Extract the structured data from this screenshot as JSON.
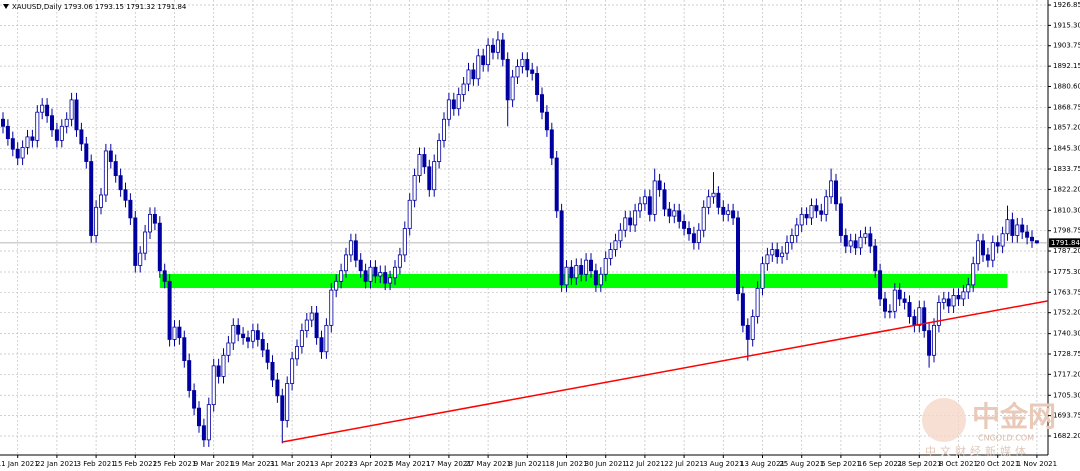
{
  "chart_data": {
    "type": "candlestick",
    "title": "XAUUSD,Daily",
    "color": "#0000a0",
    "grid": true,
    "categories": [
      null,
      null,
      null,
      "11 Jan 2021",
      null,
      null,
      null,
      null,
      null,
      null,
      null,
      "22 Jan 2021",
      null,
      null,
      null,
      null,
      null,
      null,
      null,
      "3 Feb 2021",
      null,
      null,
      null,
      null,
      null,
      null,
      null,
      "15 Feb 2021",
      null,
      null,
      null,
      null,
      null,
      null,
      null,
      "25 Feb 2021",
      null,
      null,
      null,
      null,
      null,
      null,
      null,
      "9 Mar 2021",
      null,
      null,
      null,
      null,
      null,
      null,
      null,
      "19 Mar 2021",
      null,
      null,
      null,
      null,
      null,
      null,
      null,
      "31 Mar 2021",
      null,
      null,
      null,
      null,
      null,
      null,
      null,
      "13 Apr 2021",
      null,
      null,
      null,
      null,
      null,
      null,
      null,
      "23 Apr 2021",
      null,
      null,
      null,
      null,
      null,
      null,
      null,
      "5 May 2021",
      null,
      null,
      null,
      null,
      null,
      null,
      null,
      "17 May 2021",
      null,
      null,
      null,
      null,
      null,
      null,
      null,
      "27 May 2021",
      null,
      null,
      null,
      null,
      null,
      null,
      null,
      "8 Jun 2021",
      null,
      null,
      null,
      null,
      null,
      null,
      null,
      "18 Jun 2021",
      null,
      null,
      null,
      null,
      null,
      null,
      null,
      "30 Jun 2021",
      null,
      null,
      null,
      null,
      null,
      null,
      null,
      "12 Jul 2021",
      null,
      null,
      null,
      null,
      null,
      null,
      null,
      "22 Jul 2021",
      null,
      null,
      null,
      null,
      null,
      null,
      null,
      "3 Aug 2021",
      null,
      null,
      null,
      null,
      null,
      null,
      null,
      "13 Aug 2021",
      null,
      null,
      null,
      null,
      null,
      null,
      null,
      "25 Aug 2021",
      null,
      null,
      null,
      null,
      null,
      null,
      null,
      "6 Sep 2021",
      null,
      null,
      null,
      null,
      null,
      null,
      null,
      "16 Sep 2021",
      null,
      null,
      null,
      null,
      null,
      null,
      null,
      "28 Sep 2021",
      null,
      null,
      null,
      null,
      null,
      null,
      null,
      "8 Oct 2021",
      null,
      null,
      null,
      null,
      null,
      null,
      null,
      "20 Oct 2021",
      null,
      null,
      null,
      null,
      null,
      null,
      null,
      "1 Nov 2021"
    ],
    "open": [
      1862,
      1858,
      1851,
      1845,
      1840,
      1846,
      1852,
      1850,
      1866,
      1870,
      1864,
      1856,
      1850,
      1858,
      1862,
      1873,
      1856,
      1848,
      1838,
      1796,
      1812,
      1819,
      1844,
      1838,
      1830,
      1822,
      1816,
      1806,
      1779,
      1786,
      1798,
      1808,
      1803,
      1776,
      1770,
      1737,
      1744,
      1738,
      1725,
      1708,
      1698,
      1688,
      1680,
      1700,
      1722,
      1716,
      1728,
      1735,
      1745,
      1740,
      1738,
      1736,
      1742,
      1737,
      1731,
      1724,
      1714,
      1705,
      1691,
      1712,
      1726,
      1733,
      1742,
      1748,
      1752,
      1738,
      1730,
      1745,
      1765,
      1770,
      1776,
      1785,
      1793,
      1782,
      1776,
      1770,
      1778,
      1773,
      1775,
      1769,
      1772,
      1778,
      1785,
      1800,
      1816,
      1830,
      1842,
      1835,
      1822,
      1838,
      1850,
      1862,
      1873,
      1868,
      1876,
      1882,
      1890,
      1885,
      1898,
      1893,
      1904,
      1900,
      1907,
      1896,
      1873,
      1886,
      1892,
      1896,
      1890,
      1888,
      1876,
      1866,
      1856,
      1840,
      1810,
      1768,
      1778,
      1772,
      1779,
      1774,
      1782,
      1776,
      1768,
      1774,
      1783,
      1788,
      1793,
      1799,
      1806,
      1802,
      1810,
      1814,
      1818,
      1808,
      1827,
      1822,
      1811,
      1807,
      1810,
      1804,
      1800,
      1797,
      1792,
      1799,
      1812,
      1818,
      1820,
      1812,
      1808,
      1810,
      1806,
      1763,
      1745,
      1737,
      1750,
      1766,
      1780,
      1785,
      1788,
      1784,
      1786,
      1792,
      1796,
      1802,
      1808,
      1806,
      1813,
      1810,
      1808,
      1818,
      1827,
      1814,
      1796,
      1790,
      1793,
      1789,
      1795,
      1797,
      1790,
      1776,
      1760,
      1753,
      1753,
      1765,
      1760,
      1758,
      1750,
      1745,
      1755,
      1742,
      1728,
      1745,
      1758,
      1760,
      1756,
      1762,
      1760,
      1764,
      1768,
      1780,
      1793,
      1785,
      1782,
      1792,
      1790,
      1797,
      1805,
      1796,
      1802,
      1798,
      1795,
      1793.06
    ],
    "high": [
      1866,
      1862,
      1855,
      1849,
      1850,
      1856,
      1856,
      1870,
      1874,
      1874,
      1868,
      1860,
      1862,
      1866,
      1877,
      1877,
      1860,
      1852,
      1842,
      1816,
      1823,
      1848,
      1848,
      1842,
      1834,
      1826,
      1820,
      1810,
      1790,
      1802,
      1812,
      1812,
      1807,
      1780,
      1774,
      1748,
      1748,
      1742,
      1729,
      1712,
      1702,
      1692,
      1704,
      1726,
      1726,
      1732,
      1739,
      1749,
      1749,
      1744,
      1742,
      1746,
      1746,
      1741,
      1735,
      1728,
      1718,
      1709,
      1716,
      1730,
      1737,
      1746,
      1752,
      1756,
      1756,
      1742,
      1749,
      1769,
      1774,
      1780,
      1789,
      1797,
      1797,
      1786,
      1780,
      1782,
      1782,
      1779,
      1779,
      1776,
      1782,
      1789,
      1804,
      1820,
      1834,
      1846,
      1846,
      1839,
      1842,
      1854,
      1866,
      1877,
      1877,
      1880,
      1886,
      1894,
      1894,
      1902,
      1902,
      1908,
      1908,
      1912,
      1911,
      1900,
      1890,
      1896,
      1900,
      1900,
      1894,
      1892,
      1880,
      1870,
      1860,
      1844,
      1814,
      1782,
      1782,
      1783,
      1783,
      1786,
      1786,
      1780,
      1778,
      1787,
      1792,
      1797,
      1803,
      1810,
      1810,
      1814,
      1818,
      1822,
      1822,
      1834,
      1831,
      1826,
      1815,
      1814,
      1814,
      1808,
      1804,
      1801,
      1803,
      1816,
      1822,
      1832,
      1824,
      1816,
      1814,
      1814,
      1810,
      1767,
      1749,
      1754,
      1770,
      1784,
      1789,
      1792,
      1792,
      1790,
      1796,
      1800,
      1806,
      1812,
      1812,
      1817,
      1817,
      1814,
      1822,
      1834,
      1831,
      1818,
      1800,
      1797,
      1797,
      1799,
      1801,
      1801,
      1794,
      1780,
      1764,
      1757,
      1769,
      1769,
      1764,
      1762,
      1754,
      1759,
      1759,
      1746,
      1749,
      1762,
      1764,
      1764,
      1766,
      1766,
      1768,
      1772,
      1784,
      1797,
      1797,
      1789,
      1796,
      1796,
      1801,
      1813,
      1809,
      1806,
      1806,
      1802,
      1799,
      1793.15
    ],
    "low": [
      1854,
      1847,
      1841,
      1836,
      1836,
      1842,
      1846,
      1846,
      1862,
      1860,
      1852,
      1846,
      1846,
      1854,
      1858,
      1852,
      1844,
      1834,
      1792,
      1792,
      1808,
      1815,
      1834,
      1826,
      1818,
      1812,
      1802,
      1775,
      1775,
      1782,
      1794,
      1799,
      1772,
      1766,
      1733,
      1733,
      1734,
      1721,
      1704,
      1694,
      1684,
      1676,
      1676,
      1696,
      1712,
      1712,
      1724,
      1731,
      1736,
      1734,
      1732,
      1732,
      1733,
      1727,
      1720,
      1710,
      1701,
      1678,
      1687,
      1708,
      1722,
      1729,
      1738,
      1744,
      1734,
      1726,
      1726,
      1741,
      1761,
      1766,
      1772,
      1781,
      1778,
      1772,
      1766,
      1766,
      1769,
      1769,
      1765,
      1765,
      1768,
      1774,
      1781,
      1796,
      1812,
      1826,
      1831,
      1818,
      1818,
      1834,
      1846,
      1858,
      1864,
      1864,
      1872,
      1878,
      1881,
      1881,
      1889,
      1889,
      1896,
      1896,
      1892,
      1858,
      1869,
      1882,
      1888,
      1886,
      1884,
      1872,
      1862,
      1852,
      1836,
      1806,
      1764,
      1764,
      1768,
      1768,
      1770,
      1770,
      1772,
      1764,
      1764,
      1770,
      1779,
      1784,
      1789,
      1795,
      1798,
      1798,
      1806,
      1810,
      1804,
      1804,
      1818,
      1807,
      1803,
      1803,
      1800,
      1796,
      1793,
      1788,
      1788,
      1795,
      1808,
      1814,
      1808,
      1804,
      1804,
      1802,
      1759,
      1741,
      1725,
      1733,
      1746,
      1762,
      1776,
      1781,
      1780,
      1780,
      1782,
      1788,
      1792,
      1798,
      1802,
      1802,
      1806,
      1804,
      1804,
      1814,
      1810,
      1792,
      1786,
      1786,
      1785,
      1785,
      1791,
      1786,
      1772,
      1756,
      1749,
      1749,
      1749,
      1756,
      1754,
      1746,
      1741,
      1741,
      1738,
      1721,
      1724,
      1741,
      1754,
      1752,
      1752,
      1756,
      1756,
      1760,
      1764,
      1776,
      1781,
      1778,
      1778,
      1786,
      1786,
      1793,
      1792,
      1792,
      1794,
      1791,
      1789,
      1791.32
    ],
    "close": [
      1858,
      1851,
      1845,
      1840,
      1846,
      1852,
      1850,
      1866,
      1870,
      1864,
      1856,
      1850,
      1858,
      1862,
      1873,
      1856,
      1848,
      1838,
      1796,
      1812,
      1819,
      1844,
      1838,
      1830,
      1822,
      1816,
      1806,
      1779,
      1786,
      1798,
      1808,
      1803,
      1776,
      1770,
      1737,
      1744,
      1738,
      1725,
      1708,
      1698,
      1688,
      1680,
      1700,
      1722,
      1716,
      1728,
      1735,
      1745,
      1740,
      1738,
      1736,
      1742,
      1737,
      1731,
      1724,
      1714,
      1705,
      1691,
      1712,
      1726,
      1733,
      1742,
      1748,
      1752,
      1738,
      1730,
      1745,
      1765,
      1770,
      1776,
      1785,
      1793,
      1782,
      1776,
      1770,
      1778,
      1773,
      1775,
      1769,
      1772,
      1778,
      1785,
      1800,
      1816,
      1830,
      1842,
      1835,
      1822,
      1838,
      1850,
      1862,
      1873,
      1868,
      1876,
      1882,
      1890,
      1885,
      1898,
      1893,
      1904,
      1900,
      1907,
      1896,
      1873,
      1886,
      1892,
      1896,
      1890,
      1888,
      1876,
      1866,
      1856,
      1840,
      1810,
      1768,
      1778,
      1772,
      1779,
      1774,
      1782,
      1776,
      1768,
      1774,
      1783,
      1788,
      1793,
      1799,
      1806,
      1802,
      1810,
      1814,
      1818,
      1808,
      1827,
      1822,
      1811,
      1807,
      1810,
      1804,
      1800,
      1797,
      1792,
      1799,
      1812,
      1818,
      1820,
      1812,
      1808,
      1810,
      1806,
      1763,
      1745,
      1737,
      1750,
      1766,
      1780,
      1785,
      1788,
      1784,
      1786,
      1792,
      1796,
      1802,
      1808,
      1806,
      1813,
      1810,
      1808,
      1818,
      1827,
      1814,
      1796,
      1790,
      1793,
      1789,
      1795,
      1797,
      1790,
      1776,
      1760,
      1753,
      1753,
      1765,
      1760,
      1758,
      1750,
      1745,
      1755,
      1742,
      1728,
      1745,
      1758,
      1760,
      1756,
      1762,
      1760,
      1764,
      1768,
      1780,
      1793,
      1785,
      1782,
      1792,
      1790,
      1797,
      1805,
      1796,
      1802,
      1798,
      1795,
      1793,
      1791.84
    ],
    "ylim": [
      1671.4,
      1929.7
    ],
    "yticks": [
      1926.85,
      {
        "value": 1915.3,
        "label": "1915.30"
      },
      1903.75,
      1892.15,
      {
        "value": 1880.6,
        "label": "1880.60"
      },
      1868.75,
      {
        "value": 1857.2,
        "label": "1857.20"
      },
      {
        "value": 1845.3,
        "label": "1845.30"
      },
      1833.75,
      {
        "value": 1822.2,
        "label": "1822.20"
      },
      {
        "value": 1810.3,
        "label": "1810.30"
      },
      1798.75,
      {
        "value": 1787.2,
        "label": "1787.20"
      },
      {
        "value": 1775.3,
        "label": "1775.30"
      },
      1763.75,
      {
        "value": 1752.2,
        "label": "1752.20"
      },
      {
        "value": 1740.3,
        "label": "1740.30"
      },
      1728.75,
      {
        "value": 1717.2,
        "label": "1717.20"
      },
      {
        "value": 1705.3,
        "label": "1705.30"
      },
      1693.75,
      {
        "value": 1682.2,
        "label": "1682.20"
      }
    ],
    "support_zone": {
      "low": 1766.2,
      "high": 1774.2,
      "from": 32,
      "to": 205,
      "color": "#00ff00"
    },
    "trendline": {
      "from": [
        57,
        1678.8
      ],
      "to": [
        214,
        1759.3
      ],
      "color": "#ff0000"
    },
    "watermark": {
      "name": "中金网",
      "site": "CNGOLD.COM",
      "tagline": "中文财经新媒体"
    }
  }
}
